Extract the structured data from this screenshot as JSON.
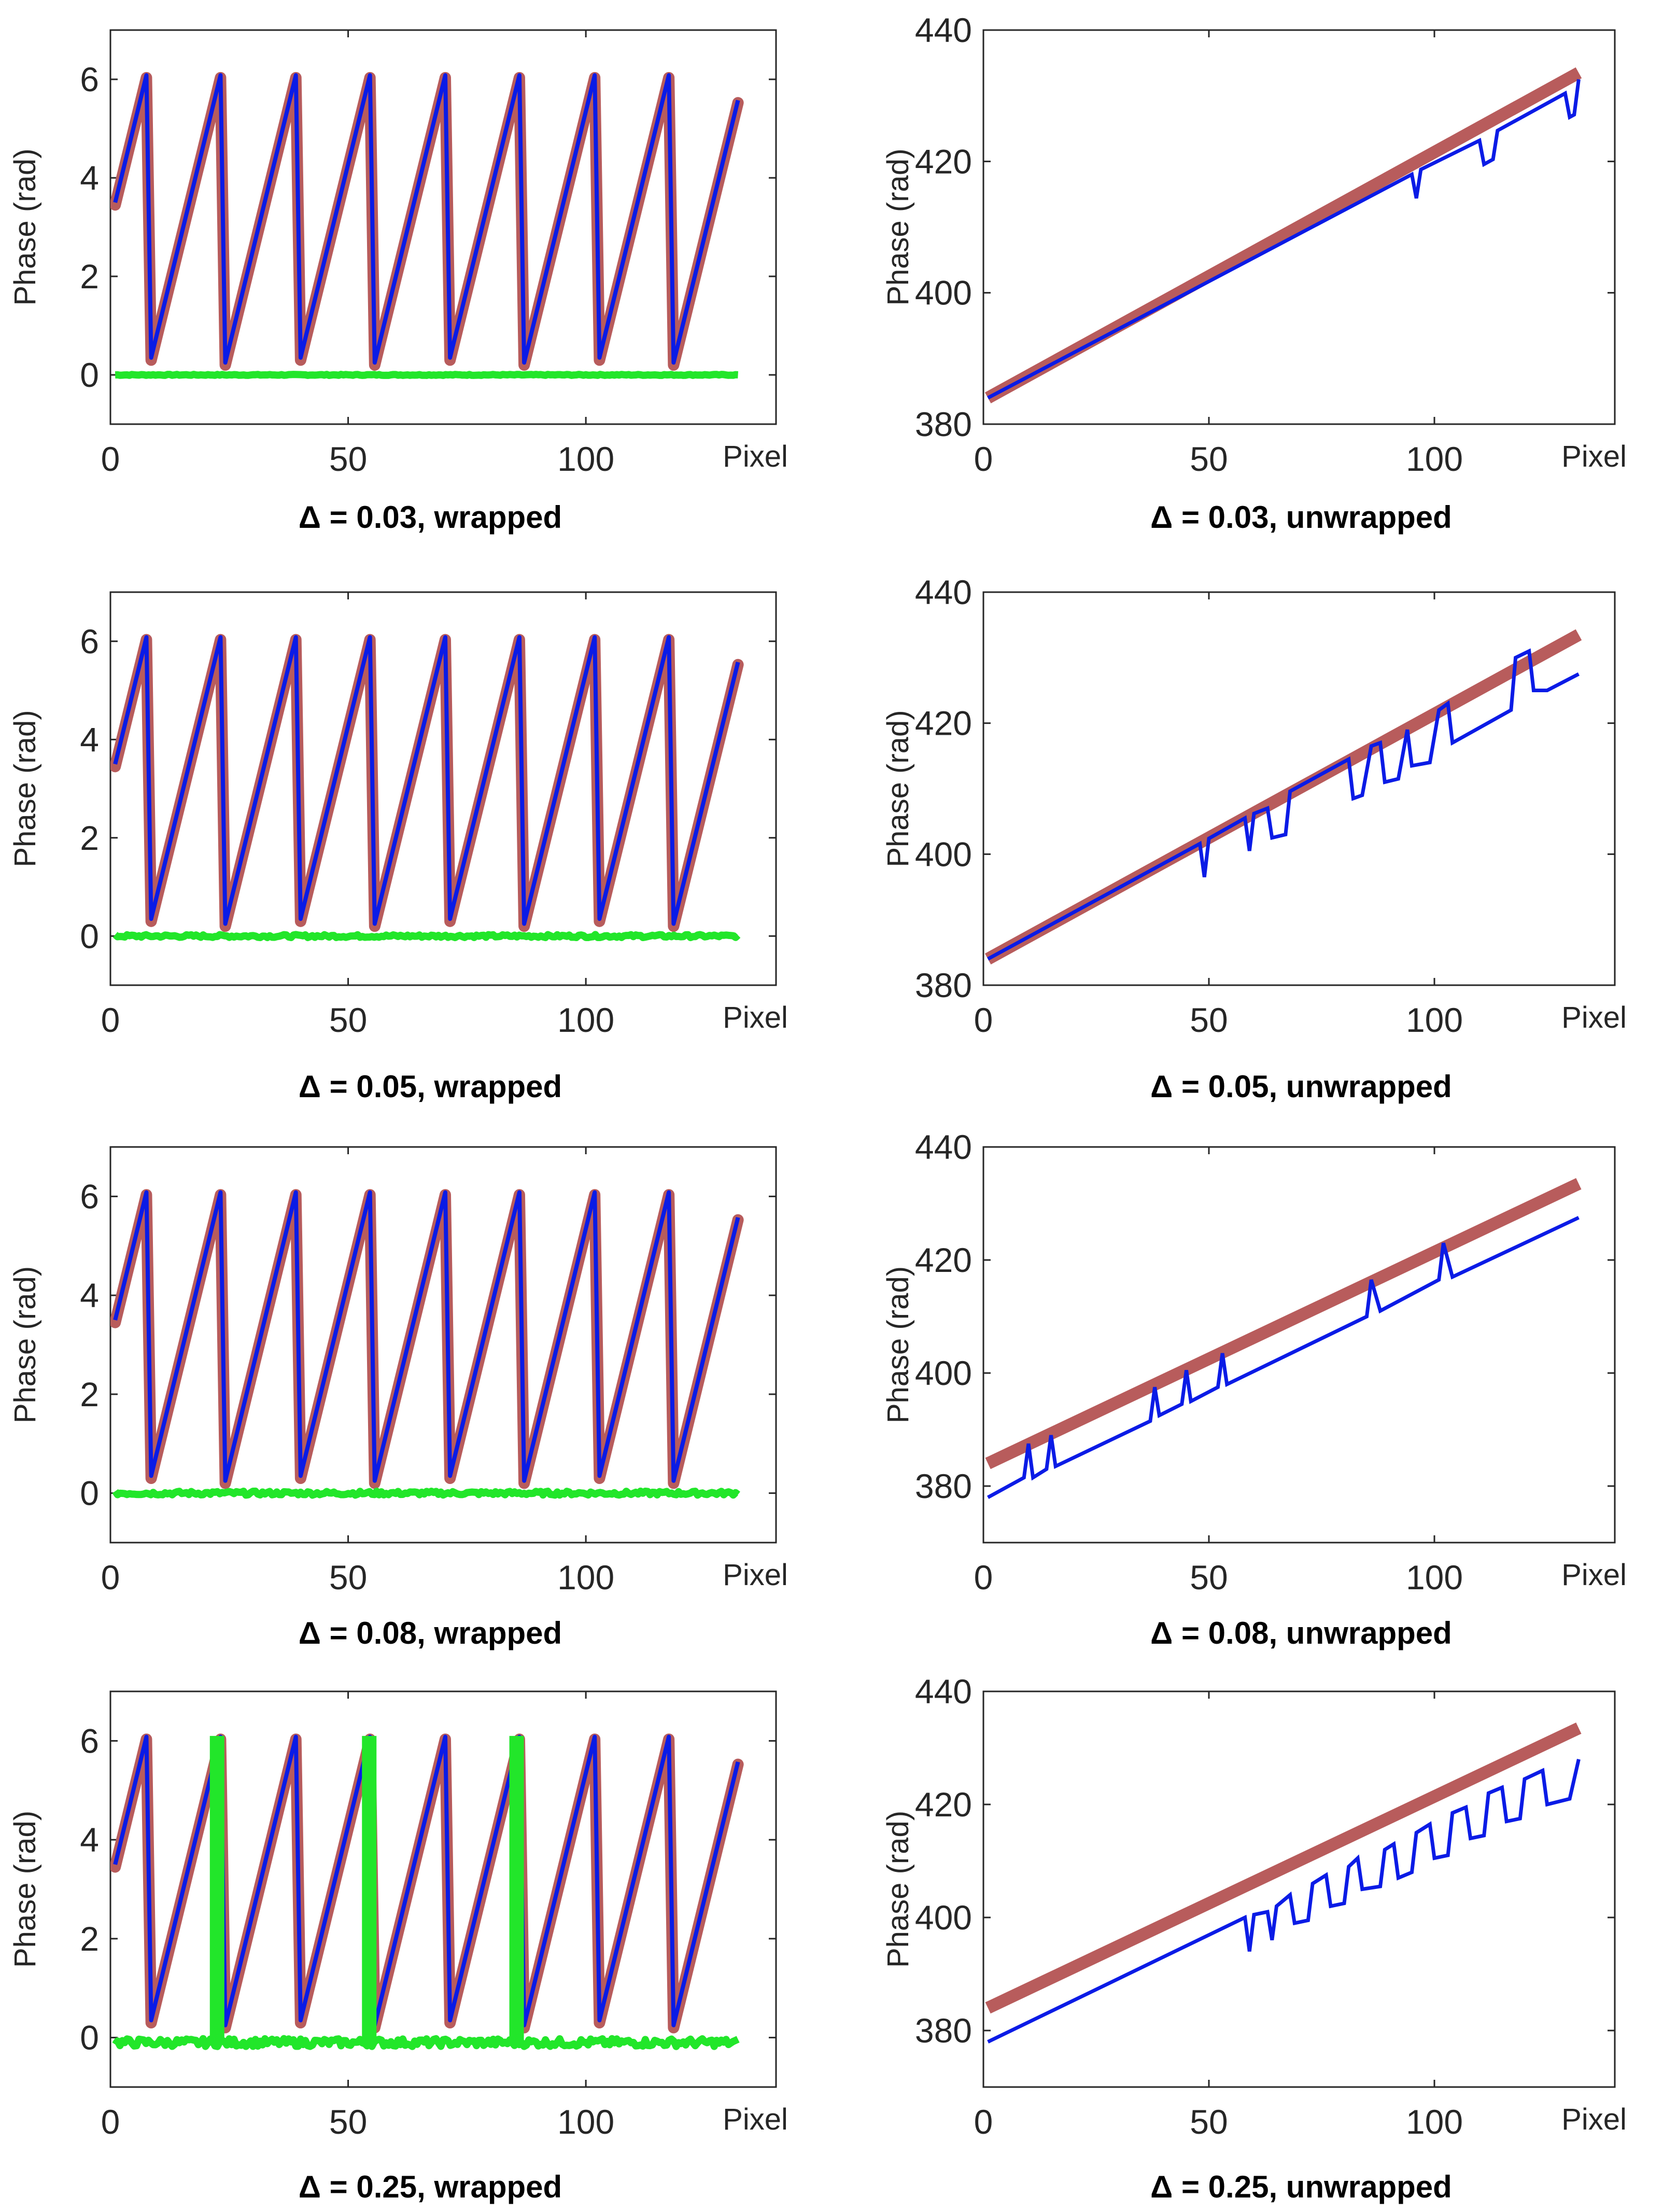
{
  "figure": {
    "colors": {
      "reference": "#b85c5c",
      "measured": "#0a1be6",
      "error": "#22e62a",
      "axes": "#262626"
    },
    "xlabel": "Pixel",
    "ylabel": "Phase (rad)"
  },
  "chart_data": [
    {
      "type": "line",
      "row": 0,
      "col": 0,
      "caption": "Δ = 0.03, wrapped",
      "kind": "wrapped",
      "delta": 0.03,
      "xlabel": "Pixel",
      "ylabel": "Phase (rad)",
      "xlim": [
        0,
        140
      ],
      "ylim": [
        -1,
        7
      ],
      "xticks": [
        0,
        50,
        100
      ],
      "yticks": [
        0,
        2,
        4,
        6
      ],
      "grid": false,
      "wrap_period": 6.283,
      "ramp_start": 3.5,
      "ramp_slope": 0.393,
      "x_range": [
        1,
        132
      ],
      "series": [
        {
          "role": "reference",
          "color": "#b85c5c",
          "description": "sawtooth, true wrapped phase"
        },
        {
          "role": "measured",
          "color": "#0a1be6",
          "description": "sawtooth, recovered wrapped phase"
        },
        {
          "role": "error",
          "color": "#22e62a",
          "values_approx": 0.0,
          "noise": 0.01
        }
      ]
    },
    {
      "type": "line",
      "row": 0,
      "col": 1,
      "caption": "Δ = 0.03, unwrapped",
      "kind": "unwrapped",
      "delta": 0.03,
      "xlabel": "Pixel",
      "ylabel": "Phase (rad)",
      "xlim": [
        0,
        140
      ],
      "ylim": [
        380,
        440
      ],
      "xticks": [
        0,
        50,
        100
      ],
      "yticks": [
        380,
        400,
        420,
        440
      ],
      "grid": false,
      "reference_line": {
        "x": [
          1,
          132
        ],
        "y": [
          384,
          433.5
        ]
      },
      "measured_offset_start": 0,
      "measured_segments": [
        [
          95,
          -1.5
        ],
        [
          96,
          -5.5
        ],
        [
          97,
          -1.5
        ],
        [
          110,
          -2
        ],
        [
          111,
          -6
        ],
        [
          113,
          -6
        ],
        [
          114,
          -2
        ],
        [
          129,
          -2
        ],
        [
          130,
          -6
        ],
        [
          131,
          -6
        ],
        [
          132,
          -1
        ]
      ]
    },
    {
      "type": "line",
      "row": 1,
      "col": 0,
      "caption": "Δ = 0.05, wrapped",
      "kind": "wrapped",
      "delta": 0.05,
      "xlabel": "Pixel",
      "ylabel": "Phase (rad)",
      "xlim": [
        0,
        140
      ],
      "ylim": [
        -1,
        7
      ],
      "xticks": [
        0,
        50,
        100
      ],
      "yticks": [
        0,
        2,
        4,
        6
      ],
      "grid": false,
      "wrap_period": 6.283,
      "ramp_start": 3.5,
      "ramp_slope": 0.393,
      "x_range": [
        1,
        132
      ],
      "series": [
        {
          "role": "reference",
          "color": "#b85c5c"
        },
        {
          "role": "measured",
          "color": "#0a1be6"
        },
        {
          "role": "error",
          "color": "#22e62a",
          "values_approx": 0.0,
          "noise": 0.03
        }
      ]
    },
    {
      "type": "line",
      "row": 1,
      "col": 1,
      "caption": "Δ = 0.05, unwrapped",
      "kind": "unwrapped",
      "delta": 0.05,
      "xlabel": "Pixel",
      "ylabel": "Phase (rad)",
      "xlim": [
        0,
        140
      ],
      "ylim": [
        380,
        440
      ],
      "xticks": [
        0,
        50,
        100
      ],
      "yticks": [
        380,
        400,
        420,
        440
      ],
      "grid": false,
      "reference_line": {
        "x": [
          1,
          132
        ],
        "y": [
          384,
          433.5
        ]
      },
      "measured_points": [
        [
          1,
          384
        ],
        [
          48,
          401.6
        ],
        [
          49,
          396.5
        ],
        [
          50,
          402.4
        ],
        [
          58,
          405.5
        ],
        [
          59,
          400.5
        ],
        [
          60,
          406.2
        ],
        [
          63,
          407
        ],
        [
          64,
          402.5
        ],
        [
          67,
          403
        ],
        [
          68,
          409.6
        ],
        [
          81,
          414.5
        ],
        [
          82,
          408.5
        ],
        [
          84,
          409
        ],
        [
          86,
          416.5
        ],
        [
          88,
          417
        ],
        [
          89,
          411
        ],
        [
          92,
          411.5
        ],
        [
          94,
          419
        ],
        [
          95,
          413.5
        ],
        [
          99,
          414
        ],
        [
          101,
          422
        ],
        [
          103,
          423
        ],
        [
          104,
          417
        ],
        [
          117,
          422
        ],
        [
          118,
          430
        ],
        [
          121,
          431
        ],
        [
          122,
          425
        ],
        [
          125,
          425
        ],
        [
          132,
          427.5
        ]
      ]
    },
    {
      "type": "line",
      "row": 2,
      "col": 0,
      "caption": "Δ = 0.08, wrapped",
      "kind": "wrapped",
      "delta": 0.08,
      "xlabel": "Pixel",
      "ylabel": "Phase (rad)",
      "xlim": [
        0,
        140
      ],
      "ylim": [
        -1,
        7
      ],
      "xticks": [
        0,
        50,
        100
      ],
      "yticks": [
        0,
        2,
        4,
        6
      ],
      "grid": false,
      "wrap_period": 6.283,
      "ramp_start": 3.5,
      "ramp_slope": 0.393,
      "x_range": [
        1,
        132
      ],
      "series": [
        {
          "role": "reference",
          "color": "#b85c5c"
        },
        {
          "role": "measured",
          "color": "#0a1be6"
        },
        {
          "role": "error",
          "color": "#22e62a",
          "values_approx": 0.0,
          "noise": 0.04
        }
      ]
    },
    {
      "type": "line",
      "row": 2,
      "col": 1,
      "caption": "Δ = 0.08, unwrapped",
      "kind": "unwrapped",
      "delta": 0.08,
      "xlabel": "Pixel",
      "ylabel": "Phase (rad)",
      "xlim": [
        0,
        140
      ],
      "ylim": [
        370,
        440
      ],
      "xticks": [
        0,
        50,
        100
      ],
      "yticks": [
        380,
        400,
        420,
        440
      ],
      "grid": false,
      "reference_line": {
        "x": [
          1,
          132
        ],
        "y": [
          384,
          433.5
        ]
      },
      "measured_points": [
        [
          1,
          378
        ],
        [
          9,
          381.5
        ],
        [
          10,
          387.5
        ],
        [
          11,
          381.5
        ],
        [
          14,
          383
        ],
        [
          15,
          389
        ],
        [
          16,
          383.5
        ],
        [
          37,
          391.5
        ],
        [
          38,
          397.5
        ],
        [
          39,
          392.5
        ],
        [
          44,
          394.5
        ],
        [
          45,
          400.5
        ],
        [
          46,
          395
        ],
        [
          52,
          397.5
        ],
        [
          53,
          403.5
        ],
        [
          54,
          398
        ],
        [
          85,
          410
        ],
        [
          86,
          416.5
        ],
        [
          88,
          411
        ],
        [
          101,
          416.5
        ],
        [
          102,
          423
        ],
        [
          104,
          417
        ],
        [
          132,
          427.5
        ]
      ]
    },
    {
      "type": "line",
      "row": 3,
      "col": 0,
      "caption": "Δ = 0.25, wrapped",
      "kind": "wrapped",
      "delta": 0.25,
      "xlabel": "Pixel",
      "ylabel": "Phase (rad)",
      "xlim": [
        0,
        140
      ],
      "ylim": [
        -1,
        7
      ],
      "xticks": [
        0,
        50,
        100
      ],
      "yticks": [
        0,
        2,
        4,
        6
      ],
      "grid": false,
      "wrap_period": 6.283,
      "ramp_start": 3.5,
      "ramp_slope": 0.393,
      "x_range": [
        1,
        132
      ],
      "error_spikes_x": [
        22,
        54,
        85
      ],
      "series": [
        {
          "role": "reference",
          "color": "#b85c5c"
        },
        {
          "role": "measured",
          "color": "#0a1be6"
        },
        {
          "role": "error",
          "color": "#22e62a",
          "values_approx": -0.1,
          "noise": 0.08
        }
      ]
    },
    {
      "type": "line",
      "row": 3,
      "col": 1,
      "caption": "Δ = 0.25, unwrapped",
      "kind": "unwrapped",
      "delta": 0.25,
      "xlabel": "Pixel",
      "ylabel": "Phase (rad)",
      "xlim": [
        0,
        140
      ],
      "ylim": [
        370,
        440
      ],
      "xticks": [
        0,
        50,
        100
      ],
      "yticks": [
        380,
        400,
        420,
        440
      ],
      "grid": false,
      "reference_line": {
        "x": [
          1,
          132
        ],
        "y": [
          384,
          433.5
        ]
      },
      "measured_points": [
        [
          1,
          378
        ],
        [
          58,
          400
        ],
        [
          59,
          394
        ],
        [
          60,
          400.5
        ],
        [
          63,
          401
        ],
        [
          64,
          396
        ],
        [
          65,
          402
        ],
        [
          68,
          404
        ],
        [
          69,
          399
        ],
        [
          72,
          399.5
        ],
        [
          73,
          406
        ],
        [
          76,
          407.5
        ],
        [
          77,
          402
        ],
        [
          80,
          402.5
        ],
        [
          81,
          409
        ],
        [
          83,
          410.5
        ],
        [
          84,
          405
        ],
        [
          88,
          405.5
        ],
        [
          89,
          412
        ],
        [
          91,
          413
        ],
        [
          92,
          407
        ],
        [
          95,
          408
        ],
        [
          96,
          415
        ],
        [
          99,
          416.5
        ],
        [
          100,
          410.5
        ],
        [
          103,
          411
        ],
        [
          104,
          418.5
        ],
        [
          107,
          419.5
        ],
        [
          108,
          414
        ],
        [
          111,
          414.5
        ],
        [
          112,
          422
        ],
        [
          115,
          423
        ],
        [
          116,
          417
        ],
        [
          119,
          417.5
        ],
        [
          120,
          424.5
        ],
        [
          124,
          426
        ],
        [
          125,
          420
        ],
        [
          130,
          421
        ],
        [
          132,
          428
        ]
      ]
    }
  ],
  "captions": [
    "Δ = 0.03, wrapped",
    "Δ = 0.03, unwrapped",
    "Δ = 0.05, wrapped",
    "Δ = 0.05, unwrapped",
    "Δ = 0.08, wrapped",
    "Δ = 0.08, unwrapped",
    "Δ = 0.25, wrapped",
    "Δ = 0.25, unwrapped"
  ]
}
